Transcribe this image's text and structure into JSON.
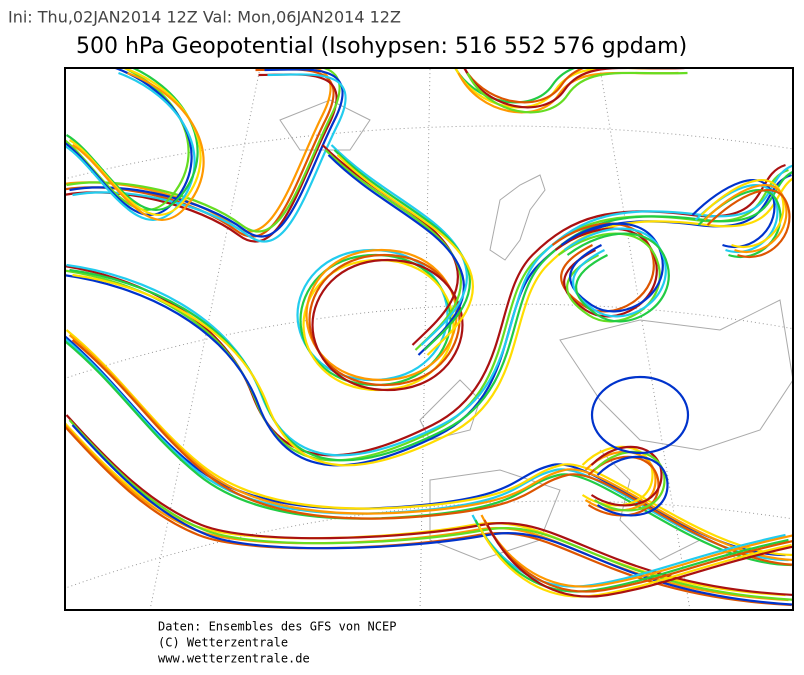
{
  "header": {
    "run_info": "Ini: Thu,02JAN2014 12Z  Val: Mon,06JAN2014 12Z",
    "title": "500 hPa Geopotential (Isohypsen: 516 552 576 gpdam)"
  },
  "footer": {
    "lines": [
      "Daten: Ensembles des GFS von NCEP",
      "(C) Wetterzentrale",
      "www.wetterzentrale.de"
    ]
  }
}
